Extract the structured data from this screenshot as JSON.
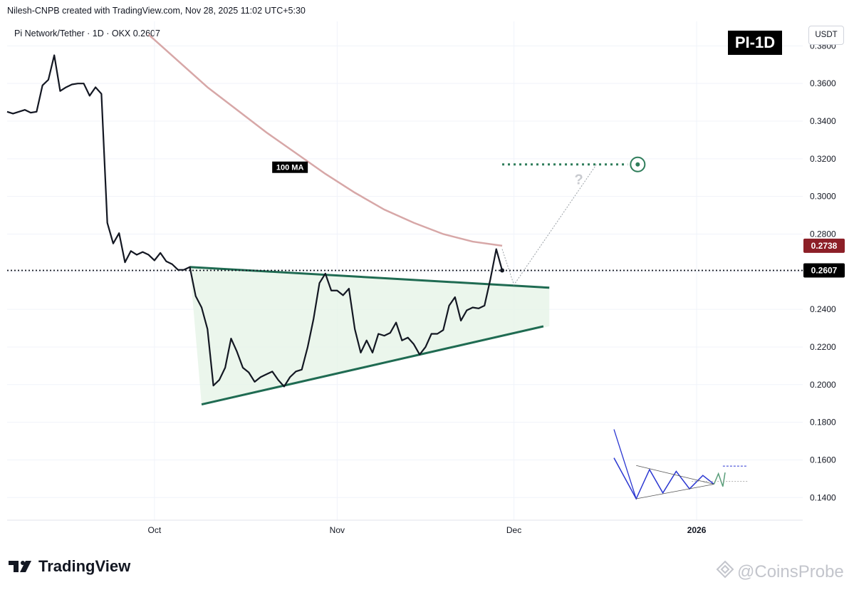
{
  "header": {
    "creator_line": "Nilesh-CNPB created with TradingView.com, Nov 28, 2025 11:02 UTC+5:30",
    "symbol_line": "Pi Network/Tether · 1D · OKX  0.2607"
  },
  "badge": {
    "label": "PI-1D"
  },
  "currency_button": {
    "label": "USDT"
  },
  "branding": {
    "logo_text": "TradingView",
    "watermark": "@CoinsProbe"
  },
  "colors": {
    "price_line": "#131722",
    "ma_line": "#d7a7a7",
    "pattern_line": "#1f6b52",
    "pattern_fill": "#e6f4e7",
    "target_dot": "#2f7d5a",
    "ma_label_bg": "#8c1f27",
    "last_price_bg": "#000000",
    "inset_blue": "#2a36d1",
    "inset_green": "#5a9e7a"
  },
  "chart_data": {
    "type": "line",
    "title": "Pi Network/Tether · 1D · OKX",
    "last_price": "0.2607",
    "ma_price": "0.2738",
    "ma_label": "100 MA",
    "y_axis": {
      "ylim": [
        0.128,
        0.393
      ],
      "ticks": [
        "0.3800",
        "0.3600",
        "0.3400",
        "0.3200",
        "0.3000",
        "0.2800",
        "0.2600",
        "0.2400",
        "0.2200",
        "0.2000",
        "0.1800",
        "0.1600",
        "0.1400"
      ]
    },
    "x_axis": {
      "date_range": [
        "2025-09-06",
        "2026-01-19"
      ],
      "ticks": [
        {
          "label": "Oct",
          "date": "2025-10-01",
          "bold": false
        },
        {
          "label": "Nov",
          "date": "2025-11-01",
          "bold": false
        },
        {
          "label": "Dec",
          "date": "2025-12-01",
          "bold": false
        },
        {
          "label": "2026",
          "date": "2026-01-01",
          "bold": true
        }
      ]
    },
    "grid": true,
    "series": [
      {
        "name": "Pi Network/Tether",
        "points": [
          [
            "2025-09-06",
            0.345
          ],
          [
            "2025-09-07",
            0.344
          ],
          [
            "2025-09-08",
            0.345
          ],
          [
            "2025-09-09",
            0.346
          ],
          [
            "2025-09-10",
            0.3445
          ],
          [
            "2025-09-11",
            0.345
          ],
          [
            "2025-09-12",
            0.359
          ],
          [
            "2025-09-13",
            0.362
          ],
          [
            "2025-09-14",
            0.375
          ],
          [
            "2025-09-15",
            0.356
          ],
          [
            "2025-09-16",
            0.358
          ],
          [
            "2025-09-17",
            0.3595
          ],
          [
            "2025-09-18",
            0.36
          ],
          [
            "2025-09-19",
            0.36
          ],
          [
            "2025-09-20",
            0.3535
          ],
          [
            "2025-09-21",
            0.358
          ],
          [
            "2025-09-22",
            0.3545
          ],
          [
            "2025-09-23",
            0.286
          ],
          [
            "2025-09-24",
            0.275
          ],
          [
            "2025-09-25",
            0.2805
          ],
          [
            "2025-09-26",
            0.265
          ],
          [
            "2025-09-27",
            0.271
          ],
          [
            "2025-09-28",
            0.269
          ],
          [
            "2025-09-29",
            0.2705
          ],
          [
            "2025-09-30",
            0.269
          ],
          [
            "2025-10-01",
            0.266
          ],
          [
            "2025-10-02",
            0.27
          ],
          [
            "2025-10-03",
            0.2655
          ],
          [
            "2025-10-04",
            0.264
          ],
          [
            "2025-10-05",
            0.261
          ],
          [
            "2025-10-06",
            0.261
          ],
          [
            "2025-10-07",
            0.2625
          ],
          [
            "2025-10-08",
            0.247
          ],
          [
            "2025-10-09",
            0.241
          ],
          [
            "2025-10-10",
            0.2295
          ],
          [
            "2025-10-11",
            0.1995
          ],
          [
            "2025-10-12",
            0.2025
          ],
          [
            "2025-10-13",
            0.209
          ],
          [
            "2025-10-14",
            0.2245
          ],
          [
            "2025-10-15",
            0.2175
          ],
          [
            "2025-10-16",
            0.209
          ],
          [
            "2025-10-17",
            0.2065
          ],
          [
            "2025-10-18",
            0.2015
          ],
          [
            "2025-10-19",
            0.204
          ],
          [
            "2025-10-20",
            0.2055
          ],
          [
            "2025-10-21",
            0.207
          ],
          [
            "2025-10-22",
            0.2025
          ],
          [
            "2025-10-23",
            0.199
          ],
          [
            "2025-10-24",
            0.204
          ],
          [
            "2025-10-25",
            0.207
          ],
          [
            "2025-10-26",
            0.208
          ],
          [
            "2025-10-27",
            0.22
          ],
          [
            "2025-10-28",
            0.235
          ],
          [
            "2025-10-29",
            0.254
          ],
          [
            "2025-10-30",
            0.259
          ],
          [
            "2025-10-31",
            0.25
          ],
          [
            "2025-11-01",
            0.25
          ],
          [
            "2025-11-02",
            0.2475
          ],
          [
            "2025-11-03",
            0.251
          ],
          [
            "2025-11-04",
            0.2295
          ],
          [
            "2025-11-05",
            0.217
          ],
          [
            "2025-11-06",
            0.2235
          ],
          [
            "2025-11-07",
            0.217
          ],
          [
            "2025-11-08",
            0.227
          ],
          [
            "2025-11-09",
            0.226
          ],
          [
            "2025-11-10",
            0.2275
          ],
          [
            "2025-11-11",
            0.233
          ],
          [
            "2025-11-12",
            0.2235
          ],
          [
            "2025-11-13",
            0.225
          ],
          [
            "2025-11-14",
            0.2215
          ],
          [
            "2025-11-15",
            0.216
          ],
          [
            "2025-11-16",
            0.22
          ],
          [
            "2025-11-17",
            0.227
          ],
          [
            "2025-11-18",
            0.227
          ],
          [
            "2025-11-19",
            0.229
          ],
          [
            "2025-11-20",
            0.242
          ],
          [
            "2025-11-21",
            0.2465
          ],
          [
            "2025-11-22",
            0.234
          ],
          [
            "2025-11-23",
            0.2395
          ],
          [
            "2025-11-24",
            0.241
          ],
          [
            "2025-11-25",
            0.2405
          ],
          [
            "2025-11-26",
            0.242
          ],
          [
            "2025-11-27",
            0.256
          ],
          [
            "2025-11-28",
            0.272
          ],
          [
            "2025-11-29",
            0.2607
          ]
        ]
      },
      {
        "name": "100 MA",
        "points": [
          [
            "2025-09-30",
            0.386
          ],
          [
            "2025-10-05",
            0.372
          ],
          [
            "2025-10-10",
            0.358
          ],
          [
            "2025-10-15",
            0.346
          ],
          [
            "2025-10-20",
            0.334
          ],
          [
            "2025-10-25",
            0.323
          ],
          [
            "2025-10-30",
            0.312
          ],
          [
            "2025-11-04",
            0.302
          ],
          [
            "2025-11-09",
            0.293
          ],
          [
            "2025-11-14",
            0.286
          ],
          [
            "2025-11-19",
            0.28
          ],
          [
            "2025-11-24",
            0.276
          ],
          [
            "2025-11-29",
            0.2738
          ]
        ]
      }
    ],
    "pattern": {
      "resistance": [
        [
          "2025-10-07",
          0.2625
        ],
        [
          "2025-12-07",
          0.2515
        ]
      ],
      "support": [
        [
          "2025-10-09",
          0.1895
        ],
        [
          "2025-12-06",
          0.231
        ]
      ],
      "fill_polygon": [
        [
          "2025-10-07",
          0.2625
        ],
        [
          "2025-12-07",
          0.2515
        ],
        [
          "2025-12-07",
          0.231
        ],
        [
          "2025-10-09",
          0.1895
        ]
      ]
    },
    "projection": [
      [
        "2025-11-29",
        0.272
      ],
      [
        "2025-12-01",
        0.253
      ],
      [
        "2025-12-15",
        0.317
      ]
    ],
    "target_level": {
      "price": 0.317,
      "from": "2025-11-29",
      "to": "2025-12-22"
    },
    "question_mark": {
      "text": "?",
      "date": "2025-12-12",
      "price": 0.3065
    },
    "inset_sketch": {
      "blue": [
        [
          0,
          0.3
        ],
        [
          0.2,
          1.0
        ],
        [
          0.32,
          0.5
        ],
        [
          0.44,
          0.9
        ],
        [
          0.56,
          0.53
        ],
        [
          0.68,
          0.83
        ],
        [
          0.8,
          0.6
        ],
        [
          0.9,
          0.75
        ]
      ],
      "green": [
        [
          0.9,
          0.75
        ],
        [
          0.94,
          0.57
        ],
        [
          0.98,
          0.79
        ],
        [
          1.0,
          0.55
        ]
      ],
      "upper": [
        [
          0.2,
          0.43
        ],
        [
          0.9,
          0.75
        ]
      ],
      "lower": [
        [
          0.2,
          1.0
        ],
        [
          0.9,
          0.75
        ]
      ]
    }
  }
}
